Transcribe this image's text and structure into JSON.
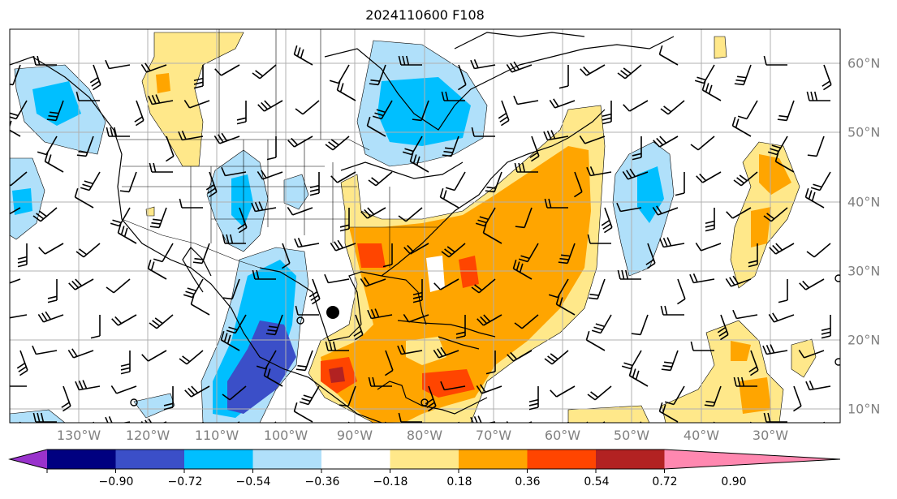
{
  "title": "2024110600 F108",
  "lon_labels": [
    "130°W",
    "120°W",
    "110°W",
    "100°W",
    "90°W",
    "80°W",
    "70°W",
    "60°W",
    "50°W",
    "40°W",
    "30°W"
  ],
  "lat_labels": [
    "60°N",
    "50°N",
    "40°N",
    "30°N",
    "20°N",
    "10°N"
  ],
  "colorbar": {
    "ticks": [
      "−0.90",
      "−0.72",
      "−0.54",
      "−0.36",
      "−0.18",
      "0.18",
      "0.36",
      "0.54",
      "0.72",
      "0.90"
    ],
    "colors": [
      "#9932cc",
      "#000080",
      "#3b4fc8",
      "#00bfff",
      "#b0e0fa",
      "#ffffff",
      "#ffe88a",
      "#ffa500",
      "#ff4500",
      "#b22222",
      "#ff88b0"
    ]
  },
  "legend_icons": [
    "wind-barb-icon",
    "storm-center-icon",
    "calm-circle-icon"
  ]
}
